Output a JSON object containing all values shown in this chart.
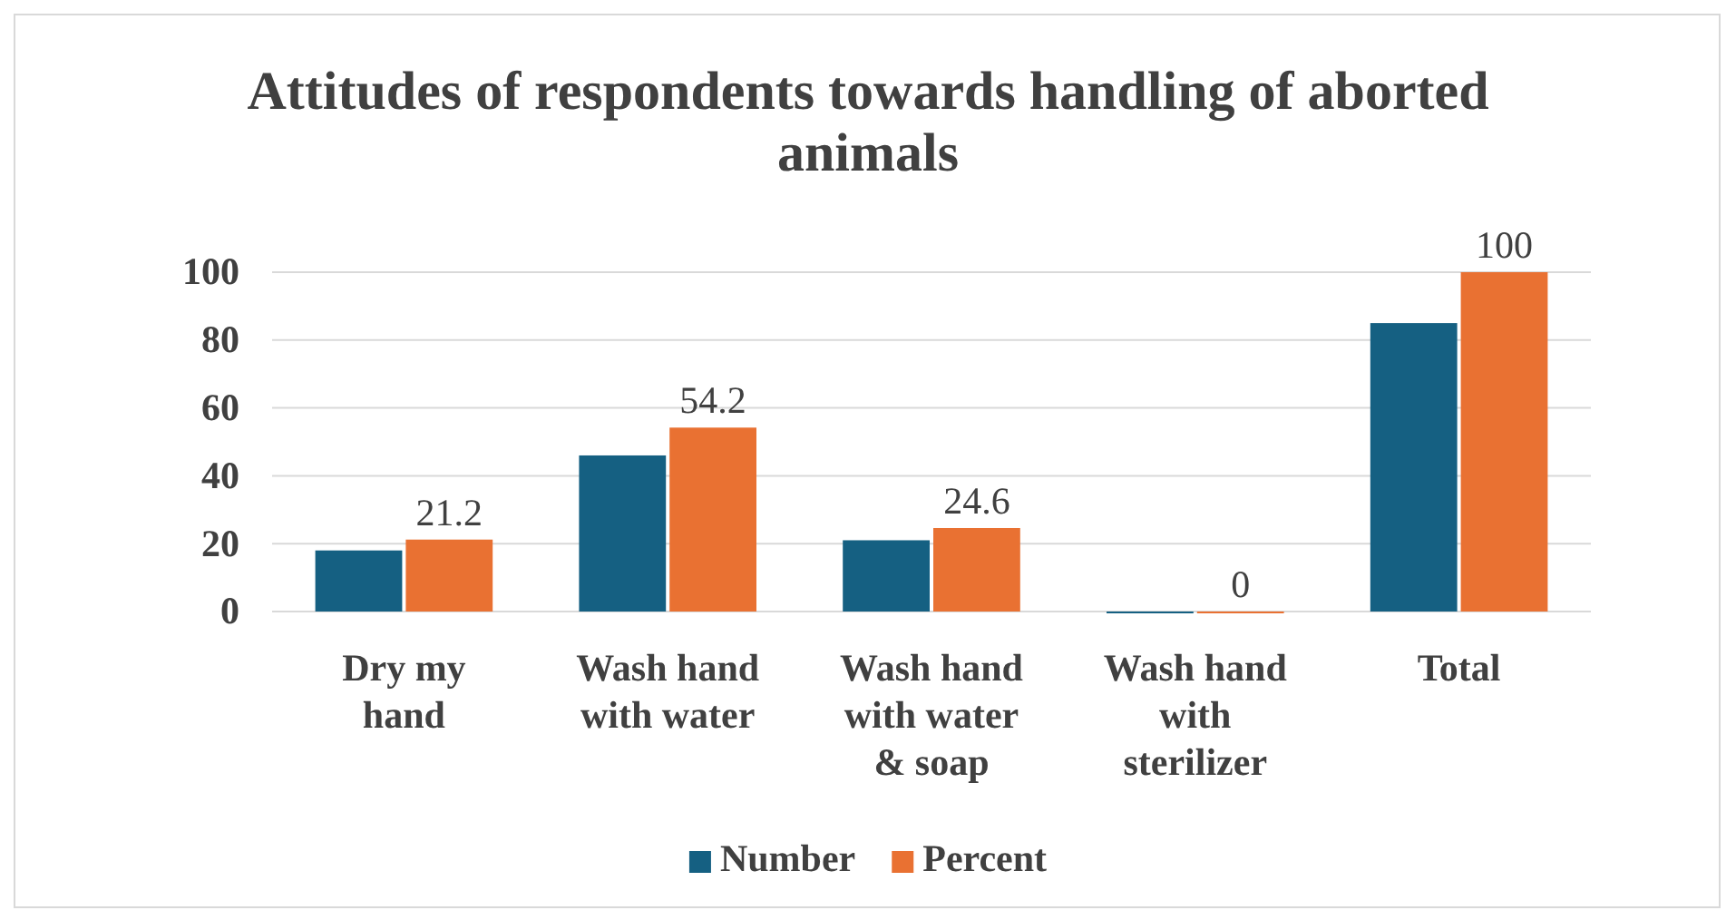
{
  "chart_data": {
    "type": "bar",
    "title": "Attitudes of respondents towards handling of aborted animals",
    "categories": [
      "Dry my hand",
      "Wash hand with water",
      "Wash hand with water & soap",
      "Wash hand with sterilizer",
      "Total"
    ],
    "series": [
      {
        "name": "Number",
        "color": "#156082",
        "values": [
          18,
          46,
          21,
          0,
          85
        ]
      },
      {
        "name": "Percent",
        "color": "#e97132",
        "values": [
          21.2,
          54.2,
          24.6,
          0,
          100
        ],
        "value_labels": [
          "21.2",
          "54.2",
          "24.6",
          "0",
          "100"
        ]
      }
    ],
    "ylim": [
      0,
      100
    ],
    "yticks": [
      0,
      20,
      40,
      60,
      80,
      100
    ],
    "grid": "y",
    "legend": "bottom"
  }
}
